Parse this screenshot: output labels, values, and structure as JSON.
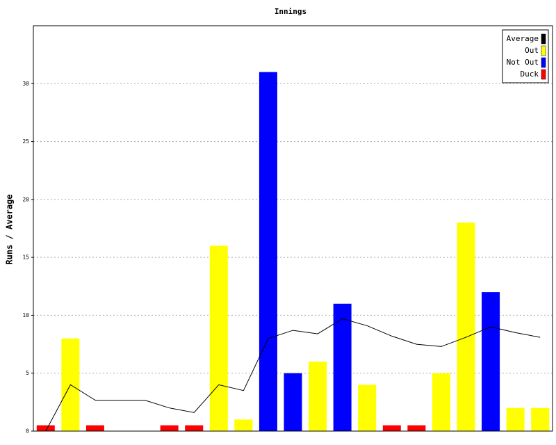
{
  "chart_data": {
    "type": "bar",
    "title": "Innings",
    "y_label": "Runs / Average",
    "categories": [
      null,
      null,
      null,
      null,
      null,
      null,
      null,
      null,
      null,
      null,
      null,
      null,
      null,
      null,
      null,
      null,
      null,
      null,
      null,
      null,
      null
    ],
    "series": [
      {
        "name": "Average",
        "type": "line",
        "color": "#000000",
        "values": [
          0,
          4,
          2.67,
          2.67,
          2.67,
          2,
          1.6,
          4,
          3.5,
          8,
          8.7,
          8.4,
          9.7,
          9.1,
          8.2,
          7.5,
          7.3,
          8.1,
          9.0,
          8.5,
          8.1
        ]
      },
      {
        "name": "Out",
        "color": "#ffff00",
        "values": [
          null,
          8,
          null,
          null,
          null,
          null,
          null,
          16,
          1,
          null,
          null,
          6,
          null,
          4,
          null,
          null,
          5,
          18,
          null,
          2,
          2
        ]
      },
      {
        "name": "Not Out",
        "color": "#0000ff",
        "values": [
          null,
          null,
          null,
          null,
          null,
          null,
          null,
          null,
          null,
          31,
          5,
          null,
          11,
          null,
          null,
          null,
          null,
          null,
          12,
          null,
          null
        ]
      },
      {
        "name": "Duck",
        "color": "#ff0000",
        "values": [
          0.5,
          null,
          0.5,
          null,
          null,
          0.5,
          0.5,
          null,
          null,
          null,
          null,
          null,
          null,
          null,
          0.5,
          0.5,
          null,
          null,
          null,
          null,
          null
        ]
      }
    ],
    "ylim": [
      0,
      35
    ],
    "yticks": [
      0,
      5,
      10,
      15,
      20,
      25,
      30
    ],
    "grid": true,
    "legend": "top-right"
  }
}
